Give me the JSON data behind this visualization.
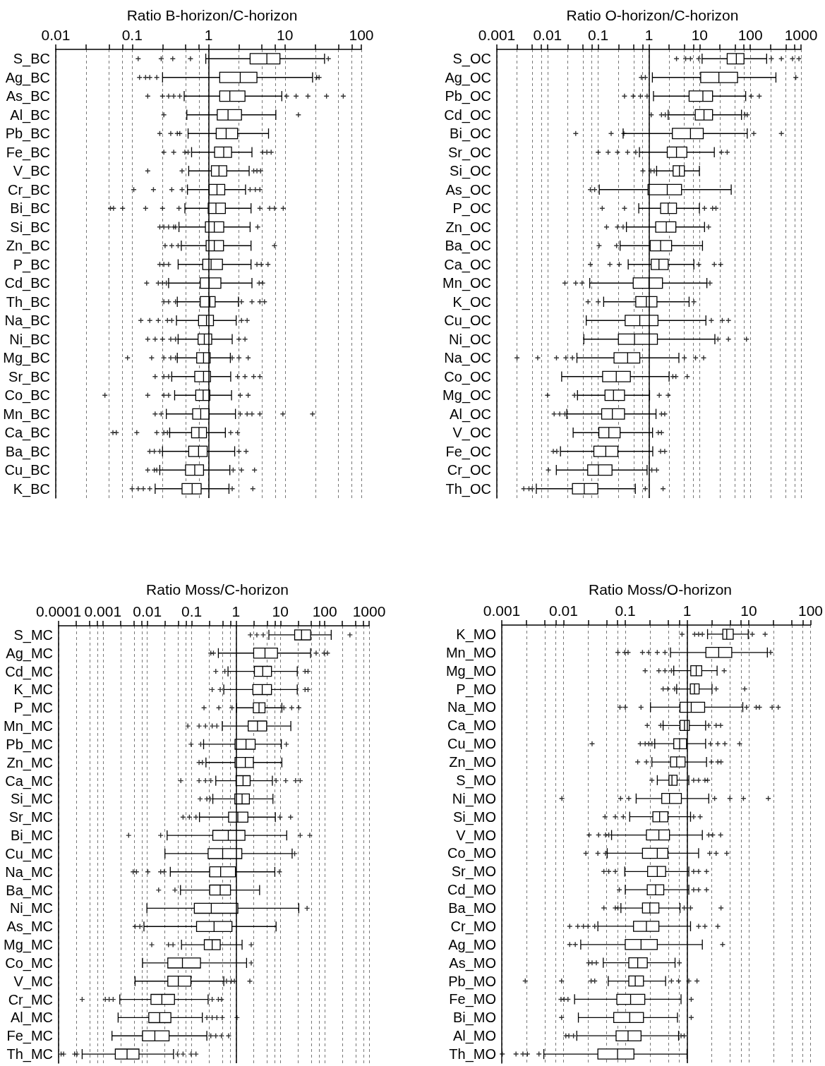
{
  "chart_data": [
    {
      "type": "box",
      "title": "Ratio B-horizon/C-horizon",
      "orientation": "horizontal",
      "log": "x",
      "grid": "x",
      "marker": "cross",
      "xlim": [
        0.01,
        100
      ],
      "xticks": [
        0.01,
        {
          "value": 0.025,
          "label": null
        },
        {
          "value": 0.05,
          "label": null
        },
        {
          "value": 0.075,
          "label": null
        },
        0.1,
        {
          "value": 0.25,
          "label": null
        },
        {
          "value": 0.5,
          "label": null
        },
        {
          "value": 0.75,
          "label": null
        },
        1,
        {
          "value": 2.5,
          "label": null
        },
        {
          "value": 5,
          "label": null
        },
        {
          "value": 7.5,
          "label": null
        },
        10,
        {
          "value": 25,
          "label": null
        },
        {
          "value": 50,
          "label": null
        },
        {
          "value": 75,
          "label": null
        },
        100
      ],
      "ref_lines": [
        {
          "axis": "x",
          "value": 1
        }
      ],
      "categories": [
        "S_BC",
        "Ag_BC",
        "As_BC",
        "Al_BC",
        "Pb_BC",
        "Fe_BC",
        "V_BC",
        "Cr_BC",
        "Bi_BC",
        "Si_BC",
        "Zn_BC",
        "P_BC",
        "Cd_BC",
        "Th_BC",
        "Na_BC",
        "Ni_BC",
        "Mg_BC",
        "Sr_BC",
        "Co_BC",
        "Mn_BC",
        "Ca_BC",
        "Ba_BC",
        "Cu_BC",
        "K_BC"
      ],
      "boxes": [
        {
          "low": 0.92,
          "q1": 3.5,
          "median": 5.8,
          "q3": 8.6,
          "high": 33,
          "outliers": [
            0.12,
            0.24,
            0.34,
            0.58,
            37
          ]
        },
        {
          "low": 0.25,
          "q1": 1.4,
          "median": 2.6,
          "q3": 4.3,
          "high": 23,
          "outliers": [
            0.125,
            0.15,
            0.17,
            0.21,
            26,
            28
          ]
        },
        {
          "low": 0.48,
          "q1": 1.4,
          "median": 1.9,
          "q3": 3.0,
          "high": 9.1,
          "outliers": [
            0.16,
            0.25,
            0.3,
            0.35,
            0.42,
            10.5,
            14,
            20,
            35,
            58
          ]
        },
        {
          "low": 0.52,
          "q1": 1.3,
          "median": 1.8,
          "q3": 2.7,
          "high": 7.6,
          "outliers": [
            0.26,
            15
          ]
        },
        {
          "low": 0.54,
          "q1": 1.26,
          "median": 1.7,
          "q3": 2.4,
          "high": 6.1,
          "outliers": [
            0.23,
            0.32,
            0.39,
            0.42
          ]
        },
        {
          "low": 0.6,
          "q1": 1.2,
          "median": 1.58,
          "q3": 2.0,
          "high": 3.7,
          "outliers": [
            0.26,
            0.35,
            0.49,
            0.54,
            5.1,
            5.8,
            6.6
          ]
        },
        {
          "low": 0.55,
          "q1": 1.09,
          "median": 1.37,
          "q3": 1.73,
          "high": 3.4,
          "outliers": [
            0.16,
            0.45,
            3.9,
            4.3,
            4.8
          ]
        },
        {
          "low": 0.53,
          "q1": 1.02,
          "median": 1.29,
          "q3": 1.63,
          "high": 3.05,
          "outliers": [
            0.105,
            0.19,
            0.33,
            0.45,
            3.5,
            4.1,
            4.7
          ]
        },
        {
          "low": 0.49,
          "q1": 0.99,
          "median": 1.25,
          "q3": 1.66,
          "high": 3.6,
          "outliers": [
            0.052,
            0.057,
            0.075,
            0.15,
            0.25,
            0.41,
            4.7,
            6.3,
            7.3,
            9.5
          ]
        },
        {
          "low": 0.41,
          "q1": 0.91,
          "median": 1.19,
          "q3": 1.58,
          "high": 3.5,
          "outliers": [
            0.23,
            0.26,
            0.3,
            0.35,
            0.37,
            4.4
          ]
        },
        {
          "low": 0.44,
          "q1": 0.93,
          "median": 1.19,
          "q3": 1.57,
          "high": 3.6,
          "outliers": [
            0.27,
            0.33,
            0.4,
            7.3
          ]
        },
        {
          "low": 0.4,
          "q1": 0.84,
          "median": 1.08,
          "q3": 1.52,
          "high": 3.6,
          "outliers": [
            0.23,
            0.26,
            0.3,
            4.3,
            4.9,
            6.0
          ]
        },
        {
          "low": 0.3,
          "q1": 0.78,
          "median": 1.02,
          "q3": 1.45,
          "high": 3.7,
          "outliers": [
            0.155,
            0.22,
            0.25,
            0.28,
            4.6,
            5.1
          ]
        },
        {
          "low": 0.39,
          "q1": 0.78,
          "median": 1.04,
          "q3": 1.22,
          "high": 2.46,
          "outliers": [
            0.26,
            0.3,
            0.37,
            2.7,
            3.7,
            4.7,
            5.4
          ]
        },
        {
          "low": 0.38,
          "q1": 0.74,
          "median": 0.94,
          "q3": 1.16,
          "high": 2.3,
          "outliers": [
            0.13,
            0.17,
            0.22,
            0.29,
            0.33,
            2.7,
            3.2
          ]
        },
        {
          "low": 0.4,
          "q1": 0.73,
          "median": 0.88,
          "q3": 1.1,
          "high": 2.04,
          "outliers": [
            0.16,
            0.2,
            0.25,
            0.32,
            0.37,
            2.5,
            3.0
          ]
        },
        {
          "low": 0.39,
          "q1": 0.7,
          "median": 0.86,
          "q3": 1.05,
          "high": 1.93,
          "outliers": [
            0.087,
            0.18,
            0.26,
            0.32,
            0.37,
            2.04,
            2.5,
            3.3
          ]
        },
        {
          "low": 0.33,
          "q1": 0.66,
          "median": 0.86,
          "q3": 1.06,
          "high": 1.95,
          "outliers": [
            0.2,
            0.26,
            0.3,
            2.4,
            3.0,
            3.9,
            4.7
          ]
        },
        {
          "low": 0.36,
          "q1": 0.68,
          "median": 0.85,
          "q3": 1.04,
          "high": 2.0,
          "outliers": [
            0.044,
            0.16,
            0.26,
            0.3,
            2.6,
            3.3
          ]
        },
        {
          "low": 0.28,
          "q1": 0.62,
          "median": 0.79,
          "q3": 1.02,
          "high": 2.25,
          "outliers": [
            0.2,
            0.24,
            2.6,
            3.2,
            3.7,
            4.7,
            9.4,
            23
          ]
        },
        {
          "low": 0.31,
          "q1": 0.6,
          "median": 0.75,
          "q3": 0.94,
          "high": 1.66,
          "outliers": [
            0.056,
            0.062,
            0.115,
            0.21,
            0.26,
            0.29,
            1.95,
            2.4
          ]
        },
        {
          "low": 0.25,
          "q1": 0.55,
          "median": 0.74,
          "q3": 0.96,
          "high": 2.2,
          "outliers": [
            0.17,
            0.195,
            0.23,
            2.5,
            3.1
          ]
        },
        {
          "low": 0.23,
          "q1": 0.5,
          "median": 0.66,
          "q3": 0.86,
          "high": 1.9,
          "outliers": [
            0.16,
            0.195,
            0.21,
            2.1,
            2.7,
            4.0
          ]
        },
        {
          "low": 0.2,
          "q1": 0.45,
          "median": 0.61,
          "q3": 0.8,
          "high": 1.85,
          "outliers": [
            0.1,
            0.12,
            0.14,
            0.17,
            2.04,
            3.8
          ]
        }
      ]
    },
    {
      "type": "box",
      "title": "Ratio O-horizon/C-horizon",
      "orientation": "horizontal",
      "log": "x",
      "grid": "x",
      "marker": "cross",
      "xlim": [
        0.001,
        1000
      ],
      "xticks": [
        0.001,
        {
          "value": 0.0025,
          "label": null
        },
        {
          "value": 0.005,
          "label": null
        },
        {
          "value": 0.0075,
          "label": null
        },
        0.01,
        {
          "value": 0.025,
          "label": null
        },
        {
          "value": 0.05,
          "label": null
        },
        {
          "value": 0.075,
          "label": null
        },
        0.1,
        {
          "value": 0.25,
          "label": null
        },
        {
          "value": 0.5,
          "label": null
        },
        {
          "value": 0.75,
          "label": null
        },
        1,
        {
          "value": 2.5,
          "label": null
        },
        {
          "value": 5,
          "label": null
        },
        {
          "value": 7.5,
          "label": null
        },
        10,
        {
          "value": 25,
          "label": null
        },
        {
          "value": 50,
          "label": null
        },
        {
          "value": 75,
          "label": null
        },
        100,
        {
          "value": 250,
          "label": null
        },
        {
          "value": 500,
          "label": null
        },
        {
          "value": 750,
          "label": null
        },
        1000
      ],
      "ref_lines": [
        {
          "axis": "x",
          "value": 1
        }
      ],
      "categories": [
        "S_OC",
        "Ag_OC",
        "Pb_OC",
        "Cd_OC",
        "Bi_OC",
        "Sr_OC",
        "Si_OC",
        "As_OC",
        "P_OC",
        "Zn_OC",
        "Ba_OC",
        "Ca_OC",
        "Mn_OC",
        "K_OC",
        "Cu_OC",
        "Ni_OC",
        "Na_OC",
        "Co_OC",
        "Mg_OC",
        "Al_OC",
        "V_OC",
        "Fe_OC",
        "Cr_OC",
        "Th_OC"
      ],
      "boxes": [
        {
          "low": 11.2,
          "q1": 35,
          "median": 53,
          "q3": 75,
          "high": 210,
          "outliers": [
            3.5,
            5.3,
            6.6,
            9.6,
            260,
            410,
            680,
            910
          ]
        },
        {
          "low": 1.17,
          "q1": 10.5,
          "median": 24,
          "q3": 56,
          "high": 320,
          "outliers": [
            0.71,
            0.85,
            790
          ]
        },
        {
          "low": 1.23,
          "q1": 6.2,
          "median": 11.6,
          "q3": 18,
          "high": 81,
          "outliers": [
            0.33,
            0.49,
            0.68,
            0.92,
            104,
            150
          ]
        },
        {
          "low": 2.4,
          "q1": 8.2,
          "median": 12.2,
          "q3": 18,
          "high": 67,
          "outliers": [
            1.11,
            1.77,
            2.1,
            78,
            87
          ]
        },
        {
          "low": 0.31,
          "q1": 2.9,
          "median": 6.6,
          "q3": 11.8,
          "high": 87,
          "outliers": [
            0.036,
            0.18,
            0.32,
            117,
            410
          ]
        },
        {
          "low": 0.65,
          "q1": 2.3,
          "median": 3.5,
          "q3": 5.6,
          "high": 19.5,
          "outliers": [
            0.1,
            0.157,
            0.24,
            0.38,
            0.55,
            27,
            35
          ]
        },
        {
          "low": 1.42,
          "q1": 3.0,
          "median": 4.0,
          "q3": 5.0,
          "high": 9.9,
          "outliers": [
            0.76,
            1.09,
            1.27
          ]
        },
        {
          "low": 0.105,
          "q1": 0.96,
          "median": 2.3,
          "q3": 4.4,
          "high": 42,
          "outliers": [
            0.07,
            0.085
          ]
        },
        {
          "low": 0.63,
          "q1": 1.7,
          "median": 2.4,
          "q3": 3.5,
          "high": 9.9,
          "outliers": [
            0.12,
            0.33,
            12.5,
            18,
            21
          ]
        },
        {
          "low": 0.36,
          "q1": 1.36,
          "median": 2.2,
          "q3": 3.4,
          "high": 12.5,
          "outliers": [
            0.146,
            0.24,
            0.31,
            15
          ]
        },
        {
          "low": 0.27,
          "q1": 1.06,
          "median": 1.7,
          "q3": 2.8,
          "high": 11.4,
          "outliers": [
            0.104,
            0.23
          ]
        },
        {
          "low": 0.39,
          "q1": 1.11,
          "median": 1.58,
          "q3": 2.4,
          "high": 7.7,
          "outliers": [
            0.07,
            0.17,
            0.26,
            9.6,
            19.5,
            26
          ]
        },
        {
          "low": 0.068,
          "q1": 0.49,
          "median": 1.0,
          "q3": 1.85,
          "high": 13.9,
          "outliers": [
            0.022,
            0.036,
            0.048,
            16
          ]
        },
        {
          "low": 0.128,
          "q1": 0.55,
          "median": 0.89,
          "q3": 1.44,
          "high": 6.2,
          "outliers": [
            0.063,
            0.1,
            7.7
          ]
        },
        {
          "low": 0.058,
          "q1": 0.34,
          "median": 0.66,
          "q3": 1.51,
          "high": 13.3,
          "outliers": [
            17,
            28,
            37
          ]
        },
        {
          "low": 0.052,
          "q1": 0.25,
          "median": 0.52,
          "q3": 1.47,
          "high": 20,
          "outliers": [
            23,
            37,
            84
          ]
        },
        {
          "low": 0.038,
          "q1": 0.205,
          "median": 0.38,
          "q3": 0.66,
          "high": 3.9,
          "outliers": [
            0.0025,
            0.0064,
            0.015,
            0.023,
            0.031,
            5.0,
            8.3,
            12
          ]
        },
        {
          "low": 0.019,
          "q1": 0.122,
          "median": 0.227,
          "q3": 0.43,
          "high": 2.5,
          "outliers": [
            2.96,
            3.4,
            5.7
          ]
        },
        {
          "low": 0.039,
          "q1": 0.136,
          "median": 0.2,
          "q3": 0.33,
          "high": 1.03,
          "outliers": [
            0.01,
            0.034,
            1.6,
            2.4
          ]
        },
        {
          "low": 0.024,
          "q1": 0.117,
          "median": 0.19,
          "q3": 0.33,
          "high": 1.38,
          "outliers": [
            0.0135,
            0.0174,
            0.022,
            1.77,
            2.05
          ]
        },
        {
          "low": 0.032,
          "q1": 0.103,
          "median": 0.162,
          "q3": 0.27,
          "high": 1.18,
          "outliers": [
            1.53,
            1.77
          ]
        },
        {
          "low": 0.018,
          "q1": 0.082,
          "median": 0.141,
          "q3": 0.244,
          "high": 1.19,
          "outliers": [
            0.013,
            0.0152,
            1.7,
            2.05
          ]
        },
        {
          "low": 0.0149,
          "q1": 0.062,
          "median": 0.101,
          "q3": 0.187,
          "high": 0.92,
          "outliers": [
            0.0104,
            1.14,
            1.42
          ]
        },
        {
          "low": 0.006,
          "q1": 0.031,
          "median": 0.053,
          "q3": 0.098,
          "high": 0.54,
          "outliers": [
            0.0034,
            0.0043,
            0.005,
            0.85,
            1.9
          ]
        }
      ]
    },
    {
      "type": "box",
      "title": "Ratio Moss/C-horizon",
      "orientation": "horizontal",
      "log": "x",
      "grid": "x",
      "marker": "cross",
      "xlim": [
        0.0001,
        1000
      ],
      "xticks": [
        0.0001,
        {
          "value": 0.00025,
          "label": null
        },
        {
          "value": 0.0005,
          "label": null
        },
        {
          "value": 0.00075,
          "label": null
        },
        0.001,
        {
          "value": 0.0025,
          "label": null
        },
        {
          "value": 0.005,
          "label": null
        },
        {
          "value": 0.0075,
          "label": null
        },
        0.01,
        {
          "value": 0.025,
          "label": null
        },
        {
          "value": 0.05,
          "label": null
        },
        {
          "value": 0.075,
          "label": null
        },
        0.1,
        {
          "value": 0.25,
          "label": null
        },
        {
          "value": 0.5,
          "label": null
        },
        {
          "value": 0.75,
          "label": null
        },
        1,
        {
          "value": 2.5,
          "label": null
        },
        {
          "value": 5,
          "label": null
        },
        {
          "value": 7.5,
          "label": null
        },
        10,
        {
          "value": 25,
          "label": null
        },
        {
          "value": 50,
          "label": null
        },
        {
          "value": 75,
          "label": null
        },
        100,
        {
          "value": 250,
          "label": null
        },
        {
          "value": 500,
          "label": null
        },
        {
          "value": 750,
          "label": null
        },
        1000
      ],
      "ref_lines": [
        {
          "axis": "x",
          "value": 1
        }
      ],
      "categories": [
        "S_MC",
        "Ag_MC",
        "Cd_MC",
        "K_MC",
        "P_MC",
        "Mn_MC",
        "Pb_MC",
        "Zn_MC",
        "Ca_MC",
        "Si_MC",
        "Sr_MC",
        "Bi_MC",
        "Cu_MC",
        "Na_MC",
        "Ba_MC",
        "Ni_MC",
        "As_MC",
        "Mg_MC",
        "Co_MC",
        "V_MC",
        "Cr_MC",
        "Al_MC",
        "Fe_MC",
        "Th_MC"
      ],
      "boxes": [
        {
          "low": 5.5,
          "q1": 21,
          "median": 30,
          "q3": 48,
          "high": 140,
          "outliers": [
            2.1,
            2.95,
            4.1,
            370
          ]
        },
        {
          "low": 0.4,
          "q1": 2.5,
          "median": 4.5,
          "q3": 8.6,
          "high": 48,
          "outliers": [
            0.27,
            0.31,
            64,
            97,
            115
          ]
        },
        {
          "low": 0.66,
          "q1": 2.6,
          "median": 4.0,
          "q3": 6.3,
          "high": 24,
          "outliers": [
            0.35,
            0.56,
            36,
            42
          ]
        },
        {
          "low": 0.53,
          "q1": 2.4,
          "median": 3.9,
          "q3": 6.3,
          "high": 24,
          "outliers": [
            0.29,
            0.44,
            36,
            42
          ]
        },
        {
          "low": 1.03,
          "q1": 2.46,
          "median": 3.3,
          "q3": 4.5,
          "high": 10.8,
          "outliers": [
            0.19,
            0.41,
            0.81,
            12,
            18,
            26
          ]
        },
        {
          "low": 0.49,
          "q1": 1.88,
          "median": 3.05,
          "q3": 4.9,
          "high": 17.2,
          "outliers": [
            0.082,
            0.147,
            0.205,
            0.29,
            0.37
          ]
        },
        {
          "low": 0.186,
          "q1": 0.95,
          "median": 1.68,
          "q3": 2.7,
          "high": 10.5,
          "outliers": [
            0.097,
            0.16,
            13.6
          ]
        },
        {
          "low": 0.21,
          "q1": 0.95,
          "median": 1.62,
          "q3": 2.46,
          "high": 10.8,
          "outliers": [
            0.147,
            0.174
          ]
        },
        {
          "low": 0.35,
          "q1": 1.0,
          "median": 1.44,
          "q3": 2.08,
          "high": 6.6,
          "outliers": [
            0.057,
            0.147,
            0.205,
            0.27,
            8.0,
            13.2,
            22,
            28
          ]
        },
        {
          "low": 0.3,
          "q1": 0.94,
          "median": 1.37,
          "q3": 2.0,
          "high": 6.8,
          "outliers": [
            0.155,
            0.22,
            0.26
          ]
        },
        {
          "low": 0.15,
          "q1": 0.68,
          "median": 1.1,
          "q3": 1.85,
          "high": 7.7,
          "outliers": [
            0.064,
            0.089,
            0.125,
            9.8,
            17
          ]
        },
        {
          "low": 0.028,
          "q1": 0.3,
          "median": 0.67,
          "q3": 1.59,
          "high": 13.9,
          "outliers": [
            0.0038,
            0.02,
            28,
            46
          ]
        },
        {
          "low": 0.025,
          "q1": 0.235,
          "median": 0.5,
          "q3": 1.35,
          "high": 18.4,
          "outliers": [
            21
          ]
        },
        {
          "low": 0.033,
          "q1": 0.255,
          "median": 0.45,
          "q3": 0.97,
          "high": 7.5,
          "outliers": [
            0.0048,
            0.0057,
            0.0103,
            0.02,
            0.024,
            9.5
          ]
        },
        {
          "low": 0.056,
          "q1": 0.255,
          "median": 0.44,
          "q3": 0.75,
          "high": 3.4,
          "outliers": [
            0.018,
            0.042
          ]
        },
        {
          "low": 0.0098,
          "q1": 0.115,
          "median": 0.277,
          "q3": 1.1,
          "high": 26,
          "outliers": [
            40
          ]
        },
        {
          "low": 0.0084,
          "q1": 0.129,
          "median": 0.32,
          "q3": 0.81,
          "high": 8.0,
          "outliers": [
            0.0053,
            0.0068
          ]
        },
        {
          "low": 0.059,
          "q1": 0.193,
          "median": 0.29,
          "q3": 0.44,
          "high": 1.37,
          "outliers": [
            0.0126,
            0.03,
            0.038,
            2.2
          ]
        },
        {
          "low": 0.0078,
          "q1": 0.029,
          "median": 0.062,
          "q3": 0.158,
          "high": 1.73,
          "outliers": [
            2.2
          ]
        },
        {
          "low": 0.0053,
          "q1": 0.029,
          "median": 0.05,
          "q3": 0.096,
          "high": 0.53,
          "outliers": [
            0.61,
            0.78,
            0.92,
            2.05
          ]
        },
        {
          "low": 0.0024,
          "q1": 0.0121,
          "median": 0.0213,
          "q3": 0.041,
          "high": 0.235,
          "outliers": [
            0.00034,
            0.00113,
            0.00138,
            0.0017,
            0.29,
            0.4,
            0.47
          ]
        },
        {
          "low": 0.0022,
          "q1": 0.0108,
          "median": 0.019,
          "q3": 0.034,
          "high": 0.174,
          "outliers": [
            0.22,
            0.29,
            0.37,
            0.49,
            1.05
          ]
        },
        {
          "low": 0.0016,
          "q1": 0.0078,
          "median": 0.0148,
          "q3": 0.031,
          "high": 0.22,
          "outliers": [
            0.27,
            0.35,
            0.47,
            0.68
          ]
        },
        {
          "low": 0.00034,
          "q1": 0.0019,
          "median": 0.0035,
          "q3": 0.0065,
          "high": 0.039,
          "outliers": [
            0.000114,
            0.00013,
            0.00023,
            0.00026,
            0.048,
            0.064,
            0.097,
            0.125
          ]
        }
      ]
    },
    {
      "type": "box",
      "title": "Ratio Moss/O-horizon",
      "orientation": "horizontal",
      "log": "x",
      "grid": "x",
      "marker": "cross",
      "xlim": [
        0.001,
        100
      ],
      "xticks": [
        0.001,
        {
          "value": 0.0025,
          "label": null
        },
        {
          "value": 0.005,
          "label": null
        },
        {
          "value": 0.0075,
          "label": null
        },
        0.01,
        {
          "value": 0.025,
          "label": null
        },
        {
          "value": 0.05,
          "label": null
        },
        {
          "value": 0.075,
          "label": null
        },
        0.1,
        {
          "value": 0.25,
          "label": null
        },
        {
          "value": 0.5,
          "label": null
        },
        {
          "value": 0.75,
          "label": null
        },
        1,
        {
          "value": 2.5,
          "label": null
        },
        {
          "value": 5,
          "label": null
        },
        {
          "value": 7.5,
          "label": null
        },
        10,
        {
          "value": 25,
          "label": null
        },
        {
          "value": 50,
          "label": null
        },
        {
          "value": 75,
          "label": null
        },
        100
      ],
      "ref_lines": [
        {
          "axis": "x",
          "value": 1
        }
      ],
      "categories": [
        "K_MO",
        "Mn_MO",
        "Mg_MO",
        "P_MO",
        "Na_MO",
        "Ca_MO",
        "Cu_MO",
        "Zn_MO",
        "S_MO",
        "Ni_MO",
        "Si_MO",
        "V_MO",
        "Co_MO",
        "Sr_MO",
        "Cd_MO",
        "Ba_MO",
        "Cr_MO",
        "Ag_MO",
        "As_MO",
        "Pb_MO",
        "Fe_MO",
        "Bi_MO",
        "Al_MO",
        "Th_MO"
      ],
      "boxes": [
        {
          "low": 2.15,
          "q1": 3.8,
          "median": 4.4,
          "q3": 5.6,
          "high": 9.8,
          "outliers": [
            0.83,
            1.33,
            1.54,
            1.77,
            11.4,
            18.4
          ]
        },
        {
          "low": 0.54,
          "q1": 2.02,
          "median": 3.26,
          "q3": 5.3,
          "high": 20,
          "outliers": [
            0.076,
            0.098,
            0.111,
            0.19,
            0.24,
            0.33,
            0.44,
            22.6
          ]
        },
        {
          "low": 0.61,
          "q1": 1.15,
          "median": 1.41,
          "q3": 1.73,
          "high": 3.07,
          "outliers": [
            0.21,
            0.35,
            0.44,
            0.56,
            4.0
          ]
        },
        {
          "low": 0.68,
          "q1": 1.13,
          "median": 1.32,
          "q3": 1.57,
          "high": 2.54,
          "outliers": [
            0.41,
            0.49,
            0.63,
            2.96,
            8.6
          ]
        },
        {
          "low": 0.256,
          "q1": 0.77,
          "median": 1.17,
          "q3": 1.93,
          "high": 8.0,
          "outliers": [
            0.082,
            0.1,
            0.18,
            9.2,
            13.2,
            14.9,
            23.9,
            30
          ]
        },
        {
          "low": 0.41,
          "q1": 0.77,
          "median": 0.91,
          "q3": 1.09,
          "high": 2.0,
          "outliers": [
            0.227,
            0.375,
            2.25,
            2.96,
            3.5
          ]
        },
        {
          "low": 0.3,
          "q1": 0.61,
          "median": 0.76,
          "q3": 0.98,
          "high": 2.0,
          "outliers": [
            0.029,
            0.175,
            0.21,
            0.24,
            0.27,
            2.4,
            3.15,
            4.1,
            7.1
          ]
        },
        {
          "low": 0.27,
          "q1": 0.54,
          "median": 0.68,
          "q3": 0.93,
          "high": 2.07,
          "outliers": [
            0.159,
            0.22,
            2.48,
            3.15,
            3.55
          ]
        },
        {
          "low": 0.33,
          "q1": 0.51,
          "median": 0.57,
          "q3": 0.69,
          "high": 1.07,
          "outliers": [
            0.27,
            1.28,
            1.54,
            1.95,
            2.15
          ]
        },
        {
          "low": 0.15,
          "q1": 0.39,
          "median": 0.52,
          "q3": 0.81,
          "high": 2.25,
          "outliers": [
            0.0094,
            0.084,
            0.114,
            2.8,
            4.95,
            8.2,
            20.7
          ]
        },
        {
          "low": 0.118,
          "q1": 0.28,
          "median": 0.36,
          "q3": 0.49,
          "high": 1.14,
          "outliers": [
            0.047,
            0.069,
            0.093,
            1.28,
            1.63
          ]
        },
        {
          "low": 0.06,
          "q1": 0.22,
          "median": 0.35,
          "q3": 0.52,
          "high": 1.77,
          "outliers": [
            0.026,
            0.037,
            0.048,
            0.054,
            2.25,
            2.6,
            3.5
          ]
        },
        {
          "low": 0.051,
          "q1": 0.19,
          "median": 0.33,
          "q3": 0.49,
          "high": 1.54,
          "outliers": [
            0.023,
            0.036,
            0.048,
            2.33,
            2.96,
            4.4
          ]
        },
        {
          "low": 0.098,
          "q1": 0.23,
          "median": 0.33,
          "q3": 0.45,
          "high": 1.07,
          "outliers": [
            0.045,
            0.054,
            0.069,
            1.28,
            1.54,
            2.07
          ]
        },
        {
          "low": 0.1,
          "q1": 0.227,
          "median": 0.31,
          "q3": 0.42,
          "high": 1.07,
          "outliers": [
            0.08,
            1.28,
            1.54,
            2.07
          ]
        },
        {
          "low": 0.085,
          "q1": 0.19,
          "median": 0.25,
          "q3": 0.35,
          "high": 0.77,
          "outliers": [
            0.045,
            0.069,
            0.076,
            0.9,
            1.14,
            3.55
          ]
        },
        {
          "low": 0.036,
          "q1": 0.136,
          "median": 0.22,
          "q3": 0.35,
          "high": 1.14,
          "outliers": [
            0.0126,
            0.017,
            0.021,
            0.025,
            0.032,
            1.54,
            1.95,
            3.15
          ]
        },
        {
          "low": 0.019,
          "q1": 0.1,
          "median": 0.18,
          "q3": 0.33,
          "high": 1.77,
          "outliers": [
            0.0126,
            0.0155,
            3.77
          ]
        },
        {
          "low": 0.044,
          "q1": 0.114,
          "median": 0.159,
          "q3": 0.227,
          "high": 0.64,
          "outliers": [
            0.0256,
            0.029,
            0.034,
            0.75
          ]
        },
        {
          "low": 0.053,
          "q1": 0.114,
          "median": 0.145,
          "q3": 0.197,
          "high": 0.45,
          "outliers": [
            0.0024,
            0.0093,
            0.028,
            0.032,
            0.56,
            0.73,
            1.07,
            1.45
          ]
        },
        {
          "low": 0.0151,
          "q1": 0.073,
          "median": 0.122,
          "q3": 0.207,
          "high": 0.8,
          "outliers": [
            0.0091,
            0.0102,
            0.0118,
            1.17
          ]
        },
        {
          "low": 0.0174,
          "q1": 0.065,
          "median": 0.118,
          "q3": 0.197,
          "high": 0.7,
          "outliers": [
            0.0093,
            1.17
          ]
        },
        {
          "low": 0.0164,
          "q1": 0.071,
          "median": 0.111,
          "q3": 0.18,
          "high": 0.73,
          "outliers": [
            0.0109,
            0.0122,
            0.0145,
            0.8,
            0.9
          ]
        },
        {
          "low": 0.0048,
          "q1": 0.036,
          "median": 0.075,
          "q3": 0.138,
          "high": 1.0,
          "outliers": [
            0.00102,
            0.0017,
            0.0022,
            0.0026,
            0.004
          ]
        }
      ]
    }
  ]
}
